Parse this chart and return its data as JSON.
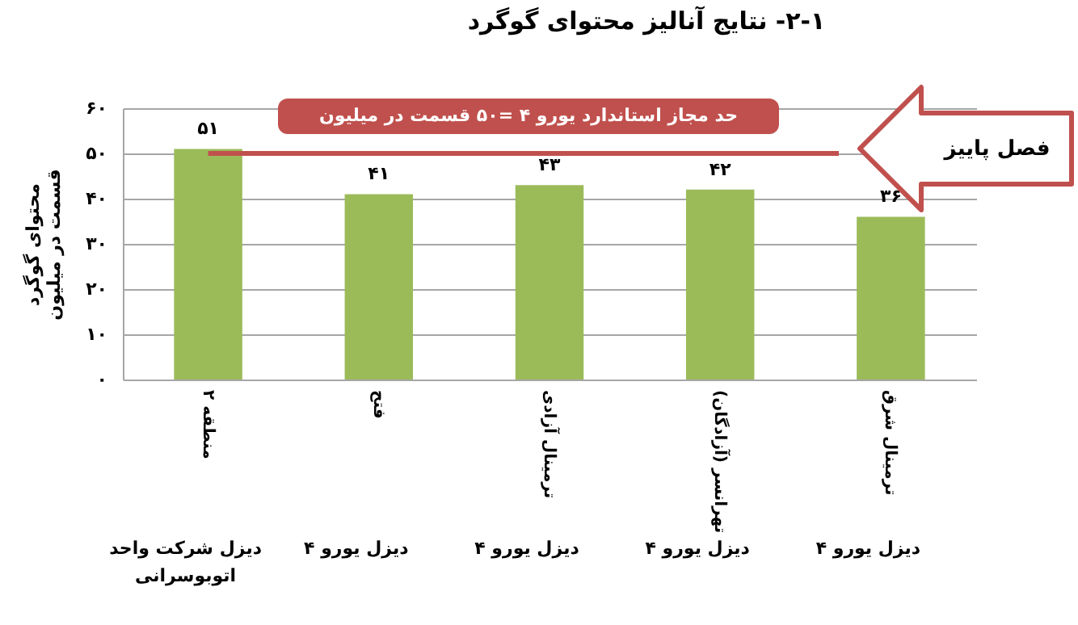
{
  "chart_data": {
    "type": "bar",
    "title": "۲-۱- نتایج آنالیز محتوای گوگرد",
    "ylabel": "محتوای گوگرد\nقسمت در میلیون",
    "categories": [
      "منطقه ۲",
      "فتح",
      "ترمینال آزادی",
      "تهرانسر (آزادگان)",
      "ترمینال شرق"
    ],
    "values": [
      51,
      41,
      43,
      42,
      36
    ],
    "value_labels": [
      "۵۱",
      "۴۱",
      "۴۳",
      "۴۲",
      "۳۶"
    ],
    "color": "#9bbb59",
    "ylim": [
      0,
      60
    ],
    "yticks": [
      {
        "value": 0,
        "label": "۰"
      },
      {
        "value": 10,
        "label": "۱۰"
      },
      {
        "value": 20,
        "label": "۲۰"
      },
      {
        "value": 30,
        "label": "۳۰"
      },
      {
        "value": 40,
        "label": "۴۰"
      },
      {
        "value": 50,
        "label": "۵۰"
      },
      {
        "value": 60,
        "label": "۶۰"
      }
    ],
    "grid": "y",
    "ref_lines": [
      {
        "axis": "y",
        "value": 50,
        "label": "حد مجاز استاندارد یورو ۴ =۵۰  قسمت در میلیون",
        "color": "#c0504d"
      }
    ],
    "annotations": [
      "دیزل شرکت واحد اتوبوسرانی",
      "دیزل یورو ۴",
      "دیزل یورو ۴",
      "دیزل یورو ۴",
      "دیزل یورو ۴",
      "فصل پاییز"
    ]
  }
}
